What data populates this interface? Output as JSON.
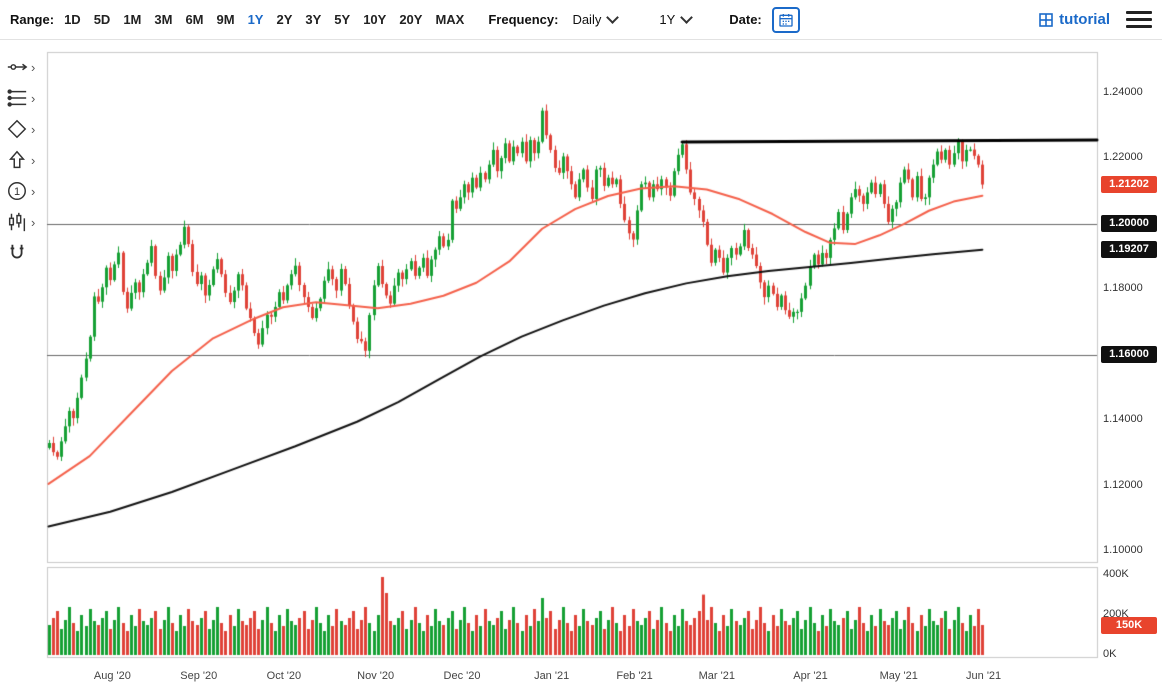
{
  "header": {
    "range_label": "Range:",
    "ranges": [
      "1D",
      "5D",
      "1M",
      "3M",
      "6M",
      "9M",
      "1Y",
      "2Y",
      "3Y",
      "5Y",
      "10Y",
      "20Y",
      "MAX"
    ],
    "active_range": "1Y",
    "frequency_label": "Frequency:",
    "frequency_value": "Daily",
    "period_value": "1Y",
    "date_label": "Date:",
    "brand": "tutorial"
  },
  "sidebar": {
    "tools": [
      "trendline-tool",
      "fibonacci-tool",
      "shape-tool",
      "arrow-tool",
      "annotation-number-tool",
      "indicator-tool",
      "magnet-tool"
    ]
  },
  "colors": {
    "candle_up": "#16a034",
    "candle_down": "#df4238",
    "ma_fast": "#f4604a",
    "ma_slow": "#111111",
    "trendline": "#000000",
    "level_line": "#666666",
    "badge_alert": "#e8442d",
    "badge_dark": "#101010",
    "accent_blue": "#1b6ac9"
  },
  "chart_data": {
    "type": "candlestick",
    "title": "",
    "frequency": "Daily",
    "range": "1Y",
    "y_ticks": [
      {
        "label": "1.24000",
        "value": 1.24
      },
      {
        "label": "1.22000",
        "value": 1.22
      },
      {
        "label": "1.18000",
        "value": 1.18
      },
      {
        "label": "1.14000",
        "value": 1.14
      },
      {
        "label": "1.12000",
        "value": 1.12
      },
      {
        "label": "1.10000",
        "value": 1.1
      }
    ],
    "price_badges": [
      {
        "label": "1.21202",
        "value": 1.21202,
        "style": "alert"
      },
      {
        "label": "1.20000",
        "value": 1.2,
        "style": "dark"
      },
      {
        "label": "1.19207",
        "value": 1.19207,
        "style": "dark"
      },
      {
        "label": "1.16000",
        "value": 1.16,
        "style": "dark"
      }
    ],
    "volume_ticks": [
      {
        "label": "400K",
        "value": 400
      },
      {
        "label": "200K",
        "value": 200
      },
      {
        "label": "0K",
        "value": 0
      }
    ],
    "volume_badge": {
      "label": "150K",
      "value": 150,
      "style": "alert"
    },
    "months": [
      {
        "label": "Aug '20",
        "index": 12
      },
      {
        "label": "Sep '20",
        "index": 33
      },
      {
        "label": "Oct '20",
        "index": 54
      },
      {
        "label": "Nov '20",
        "index": 76
      },
      {
        "label": "Dec '20",
        "index": 97
      },
      {
        "label": "Jan '21",
        "index": 119
      },
      {
        "label": "Feb '21",
        "index": 139
      },
      {
        "label": "Mar '21",
        "index": 159
      },
      {
        "label": "Apr '21",
        "index": 182
      },
      {
        "label": "May '21",
        "index": 203
      },
      {
        "label": "Jun '21",
        "index": 224
      }
    ],
    "price_axis": {
      "min": 1.0965,
      "max": 1.2525
    },
    "horizontal_lines": [
      {
        "price": 1.2
      },
      {
        "price": 1.16
      }
    ],
    "trendline": {
      "start_index": 154,
      "price_start": 1.225,
      "price_end": 1.2256,
      "extend_right": true
    },
    "ma_fast": {
      "anchors": [
        [
          0,
          1.1205
        ],
        [
          10,
          1.129
        ],
        [
          20,
          1.142
        ],
        [
          30,
          1.155
        ],
        [
          40,
          1.165
        ],
        [
          50,
          1.171
        ],
        [
          57,
          1.1745
        ],
        [
          65,
          1.176
        ],
        [
          72,
          1.1752
        ],
        [
          80,
          1.1742
        ],
        [
          88,
          1.1756
        ],
        [
          96,
          1.178
        ],
        [
          104,
          1.182
        ],
        [
          112,
          1.1885
        ],
        [
          120,
          1.1985
        ],
        [
          128,
          1.2045
        ],
        [
          136,
          1.2085
        ],
        [
          144,
          1.2108
        ],
        [
          152,
          1.2115
        ],
        [
          160,
          1.2105
        ],
        [
          168,
          1.2075
        ],
        [
          176,
          1.203
        ],
        [
          184,
          1.1975
        ],
        [
          190,
          1.1942
        ],
        [
          196,
          1.1938
        ],
        [
          202,
          1.1965
        ],
        [
          208,
          1.2
        ],
        [
          214,
          1.204
        ],
        [
          220,
          1.2068
        ],
        [
          227,
          1.2086
        ]
      ]
    },
    "ma_slow": {
      "anchors": [
        [
          0,
          1.1075
        ],
        [
          15,
          1.112
        ],
        [
          30,
          1.118
        ],
        [
          45,
          1.125
        ],
        [
          60,
          1.132
        ],
        [
          75,
          1.1395
        ],
        [
          85,
          1.1455
        ],
        [
          95,
          1.1525
        ],
        [
          105,
          1.1595
        ],
        [
          115,
          1.1655
        ],
        [
          125,
          1.1705
        ],
        [
          135,
          1.175
        ],
        [
          145,
          1.1788
        ],
        [
          155,
          1.1818
        ],
        [
          165,
          1.184
        ],
        [
          175,
          1.1856
        ],
        [
          185,
          1.1868
        ],
        [
          195,
          1.188
        ],
        [
          205,
          1.1894
        ],
        [
          215,
          1.1907
        ],
        [
          227,
          1.1921
        ]
      ]
    },
    "wick_pattern": [
      0.0009,
      0.0019,
      0.0005,
      0.0013,
      0.0023,
      0.0011,
      0.0007,
      0.0016
    ],
    "closes": [
      1.133,
      1.1302,
      1.1288,
      1.1335,
      1.1381,
      1.1428,
      1.1406,
      1.1468,
      1.153,
      1.1588,
      1.1655,
      1.1778,
      1.1762,
      1.1806,
      1.1866,
      1.1828,
      1.1876,
      1.1912,
      1.1792,
      1.1741,
      1.1789,
      1.1821,
      1.1791,
      1.1846,
      1.1881,
      1.1932,
      1.1841,
      1.1796,
      1.1836,
      1.1902,
      1.1856,
      1.1906,
      1.1936,
      1.1991,
      1.1938,
      1.1853,
      1.1816,
      1.1842,
      1.1781,
      1.1813,
      1.1861,
      1.1892,
      1.1846,
      1.1789,
      1.1761,
      1.1796,
      1.1846,
      1.1812,
      1.1741,
      1.1712,
      1.1666,
      1.1631,
      1.1681,
      1.1722,
      1.1716,
      1.1746,
      1.1791,
      1.1766,
      1.1812,
      1.1846,
      1.1872,
      1.1813,
      1.1776,
      1.1746,
      1.1712,
      1.1742,
      1.1771,
      1.1826,
      1.1861,
      1.1831,
      1.1796,
      1.1862,
      1.1816,
      1.1751,
      1.1701,
      1.1648,
      1.1641,
      1.1612,
      1.1721,
      1.1812,
      1.1871,
      1.1816,
      1.1781,
      1.1756,
      1.1811,
      1.1851,
      1.1831,
      1.1861,
      1.1886,
      1.1841,
      1.1866,
      1.1896,
      1.1841,
      1.1891,
      1.1921,
      1.1962,
      1.1931,
      1.1951,
      1.2071,
      1.2046,
      1.2081,
      1.2121,
      1.2096,
      1.2141,
      1.2111,
      1.2156,
      1.2136,
      1.2181,
      1.2226,
      1.2161,
      1.2201,
      1.2246,
      1.2191,
      1.2236,
      1.2216,
      1.2251,
      1.2191,
      1.2256,
      1.2216,
      1.2251,
      1.2346,
      1.2271,
      1.2226,
      1.2171,
      1.2156,
      1.2206,
      1.2161,
      1.2121,
      1.2081,
      1.2136,
      1.2166,
      1.2111,
      1.2076,
      1.2166,
      1.2171,
      1.2116,
      1.2141,
      1.2121,
      1.2136,
      1.2061,
      1.2011,
      1.1971,
      1.1952,
      1.2041,
      1.2121,
      1.2126,
      1.2081,
      1.2121,
      1.2106,
      1.2136,
      1.2111,
      1.2086,
      1.2161,
      1.2211,
      1.2243,
      1.2166,
      1.2096,
      1.2076,
      1.2041,
      1.2006,
      1.1936,
      1.1881,
      1.1921,
      1.1896,
      1.1851,
      1.1896,
      1.1926,
      1.1906,
      1.1931,
      1.1981,
      1.1926,
      1.1906,
      1.1871,
      1.1821,
      1.1776,
      1.1811,
      1.1786,
      1.1746,
      1.1781,
      1.1736,
      1.1716,
      1.1731,
      1.1731,
      1.1772,
      1.1811,
      1.1871,
      1.1906,
      1.1876,
      1.1911,
      1.1896,
      1.1951,
      1.1986,
      1.2036,
      1.1981,
      1.2031,
      1.2081,
      1.2106,
      1.2086,
      1.2061,
      1.2096,
      1.2126,
      1.2091,
      1.2121,
      1.2061,
      1.2006,
      1.2046,
      1.2066,
      1.2126,
      1.2166,
      1.2136,
      1.2081,
      1.2146,
      1.2076,
      1.2081,
      1.2141,
      1.2181,
      1.2221,
      1.2196,
      1.2226,
      1.2181,
      1.2216,
      1.2251,
      1.2191,
      1.2226,
      1.2227,
      1.2208,
      1.2181,
      1.21202
    ],
    "volumes_k": [
      150,
      185,
      220,
      130,
      175,
      240,
      160,
      120,
      200,
      145,
      230,
      170,
      150,
      185,
      220,
      130,
      175,
      240,
      160,
      120,
      200,
      145,
      230,
      170,
      150,
      185,
      220,
      130,
      175,
      240,
      160,
      120,
      200,
      145,
      230,
      170,
      150,
      185,
      220,
      130,
      175,
      240,
      160,
      120,
      200,
      145,
      230,
      170,
      150,
      185,
      220,
      130,
      175,
      240,
      160,
      120,
      200,
      145,
      230,
      170,
      150,
      185,
      220,
      130,
      175,
      240,
      160,
      120,
      200,
      145,
      230,
      170,
      150,
      185,
      220,
      130,
      175,
      240,
      160,
      120,
      200,
      390,
      310,
      170,
      150,
      185,
      220,
      130,
      175,
      240,
      160,
      120,
      200,
      145,
      230,
      170,
      150,
      185,
      220,
      130,
      175,
      240,
      160,
      120,
      200,
      145,
      230,
      170,
      150,
      185,
      220,
      130,
      175,
      240,
      160,
      120,
      200,
      145,
      230,
      170,
      285,
      185,
      220,
      130,
      175,
      240,
      160,
      120,
      200,
      145,
      230,
      170,
      150,
      185,
      220,
      130,
      175,
      240,
      160,
      120,
      200,
      145,
      230,
      170,
      150,
      185,
      220,
      130,
      175,
      240,
      160,
      120,
      200,
      145,
      230,
      170,
      150,
      185,
      220,
      302,
      175,
      240,
      160,
      120,
      200,
      145,
      230,
      170,
      150,
      185,
      220,
      130,
      175,
      240,
      160,
      120,
      200,
      145,
      230,
      170,
      150,
      185,
      220,
      130,
      175,
      240,
      160,
      120,
      200,
      145,
      230,
      170,
      150,
      185,
      220,
      130,
      175,
      240,
      160,
      120,
      200,
      145,
      230,
      170,
      150,
      185,
      220,
      130,
      175,
      240,
      160,
      120,
      200,
      145,
      230,
      170,
      150,
      185,
      220,
      130,
      175,
      240,
      160,
      120,
      200,
      145,
      230,
      150
    ]
  }
}
